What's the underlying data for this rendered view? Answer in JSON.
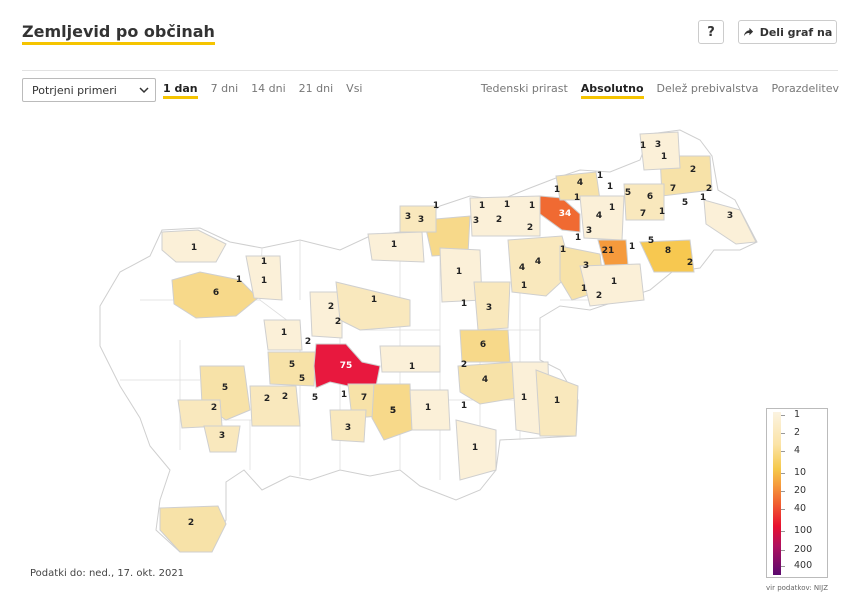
{
  "header": {
    "title": "Zemljevid po občinah",
    "help_label": "?",
    "share_label": "Deli graf na"
  },
  "controls": {
    "select_value": "Potrjeni primeri",
    "period_tabs": [
      {
        "label": "1 dan",
        "active": true
      },
      {
        "label": "7 dni",
        "active": false
      },
      {
        "label": "14 dni",
        "active": false
      },
      {
        "label": "21 dni",
        "active": false
      },
      {
        "label": "Vsi",
        "active": false
      }
    ],
    "mode_tabs": [
      {
        "label": "Tedenski prirast",
        "active": false
      },
      {
        "label": "Absolutno",
        "active": true
      },
      {
        "label": "Delež prebivalstva",
        "active": false
      },
      {
        "label": "Porazdelitev",
        "active": false
      }
    ]
  },
  "map": {
    "municipality_values": [
      "1",
      "3",
      "1",
      "2",
      "4",
      "1",
      "1",
      "5",
      "6",
      "7",
      "2",
      "1",
      "5",
      "1",
      "3",
      "1",
      "3",
      "3",
      "1",
      "1",
      "1",
      "1",
      "2",
      "34",
      "4",
      "3",
      "7",
      "1",
      "1",
      "3",
      "2",
      "1",
      "21",
      "5",
      "1",
      "8",
      "2",
      "1",
      "1",
      "1",
      "6",
      "1",
      "4",
      "4",
      "1",
      "3",
      "1",
      "1",
      "2",
      "1",
      "1",
      "1",
      "3",
      "1",
      "1",
      "2",
      "2",
      "1",
      "2",
      "6",
      "5",
      "75",
      "1",
      "2",
      "5",
      "4",
      "5",
      "5",
      "2",
      "2",
      "2",
      "5",
      "1",
      "7",
      "5",
      "1",
      "1",
      "1",
      "1",
      "3",
      "3",
      "1",
      "2"
    ]
  },
  "legend": {
    "labels": [
      "1",
      "2",
      "4",
      "10",
      "20",
      "40",
      "100",
      "200",
      "400"
    ],
    "colors": {
      "low": "#fbf3e1",
      "mid": "#f5c84a",
      "high": "#e8102f",
      "max": "#5a0a6e"
    }
  },
  "footer": {
    "data_date": "Podatki do: ned., 17. okt. 2021",
    "source": "vir podatkov: NIJZ"
  }
}
